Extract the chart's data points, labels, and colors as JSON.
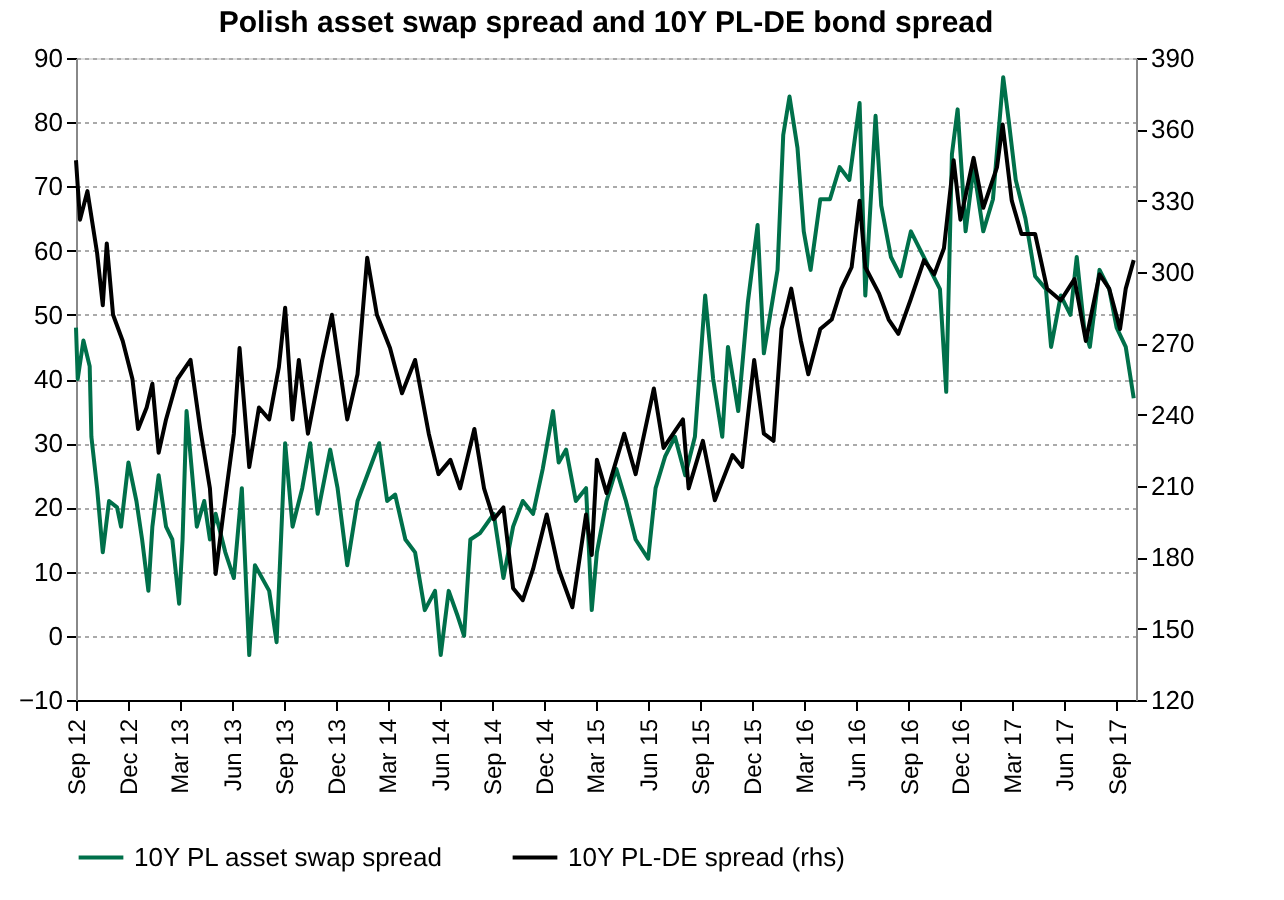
{
  "chart_data": {
    "type": "line",
    "title": "Polish asset swap spread and 10Y PL-DE bond spread",
    "xlim": [
      "2012-09-01",
      "2017-10-05"
    ],
    "xticks": [
      {
        "value": "2012-09-01",
        "label": "Sep 12"
      },
      {
        "value": "2012-12-01",
        "label": "Dec 12"
      },
      {
        "value": "2013-03-01",
        "label": "Mar 13"
      },
      {
        "value": "2013-06-01",
        "label": "Jun 13"
      },
      {
        "value": "2013-09-01",
        "label": "Sep 13"
      },
      {
        "value": "2013-12-01",
        "label": "Dec 13"
      },
      {
        "value": "2014-03-01",
        "label": "Mar 14"
      },
      {
        "value": "2014-06-01",
        "label": "Jun 14"
      },
      {
        "value": "2014-09-01",
        "label": "Sep 14"
      },
      {
        "value": "2014-12-01",
        "label": "Dec 14"
      },
      {
        "value": "2015-03-01",
        "label": "Mar 15"
      },
      {
        "value": "2015-06-01",
        "label": "Jun 15"
      },
      {
        "value": "2015-09-01",
        "label": "Sep 15"
      },
      {
        "value": "2015-12-01",
        "label": "Dec 15"
      },
      {
        "value": "2016-03-01",
        "label": "Mar 16"
      },
      {
        "value": "2016-06-01",
        "label": "Jun 16"
      },
      {
        "value": "2016-09-01",
        "label": "Sep 16"
      },
      {
        "value": "2016-12-01",
        "label": "Dec 16"
      },
      {
        "value": "2017-03-01",
        "label": "Mar 17"
      },
      {
        "value": "2017-06-01",
        "label": "Jun 17"
      },
      {
        "value": "2017-09-01",
        "label": "Sep 17"
      }
    ],
    "ylim": [
      -10,
      90
    ],
    "yticks": [
      -10,
      0,
      10,
      20,
      30,
      40,
      50,
      60,
      70,
      80,
      90
    ],
    "y2lim": [
      120,
      390
    ],
    "y2ticks": [
      120,
      150,
      180,
      210,
      240,
      270,
      300,
      330,
      360,
      390
    ],
    "grid": "y",
    "legend": "bottom",
    "line_style": "solid",
    "marker": "none",
    "series": [
      {
        "name": "10Y PL asset swap spread",
        "color": "#00704a",
        "x": [
          "2012-09-01",
          "2012-09-04",
          "2012-09-14",
          "2012-09-25",
          "2012-09-28",
          "2012-10-08",
          "2012-10-18",
          "2012-10-29",
          "2012-11-12",
          "2012-11-19",
          "2012-12-02",
          "2012-12-16",
          "2012-12-26",
          "2013-01-06",
          "2013-01-13",
          "2013-01-24",
          "2013-02-06",
          "2013-02-17",
          "2013-03-01",
          "2013-03-07",
          "2013-03-14",
          "2013-04-01",
          "2013-04-14",
          "2013-04-24",
          "2013-05-04",
          "2013-05-21",
          "2013-06-05",
          "2013-06-19",
          "2013-07-02",
          "2013-07-12",
          "2013-08-06",
          "2013-08-19",
          "2013-09-03",
          "2013-09-16",
          "2013-10-03",
          "2013-10-17",
          "2013-10-30",
          "2013-11-21",
          "2013-12-04",
          "2013-12-21",
          "2014-01-08",
          "2014-01-25",
          "2014-02-15",
          "2014-03-01",
          "2014-03-15",
          "2014-04-02",
          "2014-04-19",
          "2014-05-06",
          "2014-05-24",
          "2014-06-03",
          "2014-06-17",
          "2014-07-03",
          "2014-07-14",
          "2014-07-25",
          "2014-08-11",
          "2014-09-04",
          "2014-09-21",
          "2014-10-08",
          "2014-10-25",
          "2014-11-12",
          "2014-11-29",
          "2014-12-17",
          "2014-12-27",
          "2015-01-09",
          "2015-01-26",
          "2015-02-13",
          "2015-02-23",
          "2015-03-04",
          "2015-03-21",
          "2015-04-07",
          "2015-04-24",
          "2015-05-11",
          "2015-06-02",
          "2015-06-15",
          "2015-07-02",
          "2015-07-19",
          "2015-08-06",
          "2015-08-23",
          "2015-09-10",
          "2015-09-24",
          "2015-10-10",
          "2015-10-20",
          "2015-11-07",
          "2015-11-24",
          "2015-12-11",
          "2015-12-22",
          "2016-01-15",
          "2016-01-25",
          "2016-02-05",
          "2016-02-19",
          "2016-03-01",
          "2016-03-13",
          "2016-03-30",
          "2016-04-16",
          "2016-05-03",
          "2016-05-20",
          "2016-06-07",
          "2016-06-17",
          "2016-07-05",
          "2016-07-15",
          "2016-08-01",
          "2016-08-18",
          "2016-09-05",
          "2016-09-22",
          "2016-10-09",
          "2016-10-26",
          "2016-11-06",
          "2016-11-16",
          "2016-11-26",
          "2016-12-10",
          "2016-12-24",
          "2017-01-10",
          "2017-01-27",
          "2017-02-14",
          "2017-02-24",
          "2017-03-08",
          "2017-03-25",
          "2017-04-11",
          "2017-04-30",
          "2017-05-09",
          "2017-05-26",
          "2017-06-12",
          "2017-06-23",
          "2017-07-06",
          "2017-07-16",
          "2017-08-02",
          "2017-08-19",
          "2017-09-01",
          "2017-09-17",
          "2017-10-01"
        ],
        "values": [
          48,
          40,
          46,
          42,
          31,
          23,
          13,
          21,
          20,
          17,
          27,
          21,
          15,
          7,
          17,
          25,
          17,
          15,
          5,
          15,
          35,
          17,
          21,
          15,
          19,
          13,
          9,
          23,
          -3,
          11,
          7,
          -1,
          30,
          17,
          23,
          30,
          19,
          29,
          23,
          11,
          21,
          25,
          30,
          21,
          22,
          15,
          13,
          4,
          7,
          -3,
          7,
          3,
          0,
          15,
          16,
          19,
          9,
          17,
          21,
          19,
          26,
          35,
          27,
          29,
          21,
          23,
          4,
          13,
          21,
          26,
          21,
          15,
          12,
          23,
          28,
          31,
          25,
          31,
          53,
          40,
          31,
          45,
          35,
          52,
          64,
          44,
          57,
          78,
          84,
          76,
          63,
          57,
          68,
          68,
          73,
          71,
          83,
          53,
          81,
          67,
          59,
          56,
          63,
          60,
          57,
          54,
          38,
          75,
          82,
          63,
          73,
          63,
          68,
          87,
          80,
          71,
          65,
          56,
          54,
          45,
          53,
          50,
          59,
          48,
          45,
          57,
          54,
          48,
          45,
          37
        ]
      },
      {
        "name": "10Y PL-DE spread (rhs)",
        "color": "#000000",
        "axis": "y2",
        "x": [
          "2012-09-01",
          "2012-09-08",
          "2012-09-21",
          "2012-10-08",
          "2012-10-18",
          "2012-10-25",
          "2012-11-05",
          "2012-11-22",
          "2012-12-09",
          "2012-12-19",
          "2013-01-03",
          "2013-01-13",
          "2013-01-24",
          "2013-02-06",
          "2013-02-26",
          "2013-03-21",
          "2013-04-07",
          "2013-04-24",
          "2013-05-04",
          "2013-05-21",
          "2013-06-05",
          "2013-06-15",
          "2013-07-02",
          "2013-07-19",
          "2013-08-06",
          "2013-08-23",
          "2013-09-03",
          "2013-09-16",
          "2013-09-27",
          "2013-10-13",
          "2013-11-07",
          "2013-11-24",
          "2013-12-21",
          "2014-01-08",
          "2014-01-25",
          "2014-02-11",
          "2014-03-06",
          "2014-03-27",
          "2014-04-19",
          "2014-05-13",
          "2014-05-30",
          "2014-06-20",
          "2014-07-07",
          "2014-08-01",
          "2014-08-18",
          "2014-09-04",
          "2014-09-21",
          "2014-10-08",
          "2014-10-25",
          "2014-11-12",
          "2014-12-06",
          "2014-12-27",
          "2015-01-20",
          "2015-02-13",
          "2015-02-23",
          "2015-03-04",
          "2015-03-21",
          "2015-04-21",
          "2015-05-11",
          "2015-06-12",
          "2015-06-29",
          "2015-08-02",
          "2015-08-12",
          "2015-09-06",
          "2015-09-27",
          "2015-10-28",
          "2015-11-14",
          "2015-12-05",
          "2015-12-22",
          "2016-01-08",
          "2016-01-22",
          "2016-02-08",
          "2016-02-25",
          "2016-03-09",
          "2016-03-30",
          "2016-04-19",
          "2016-05-06",
          "2016-05-24",
          "2016-06-07",
          "2016-06-17",
          "2016-07-11",
          "2016-07-28",
          "2016-08-14",
          "2016-09-04",
          "2016-09-28",
          "2016-10-16",
          "2016-11-02",
          "2016-11-19",
          "2016-12-01",
          "2016-12-24",
          "2017-01-10",
          "2017-02-03",
          "2017-02-13",
          "2017-03-01",
          "2017-03-18",
          "2017-04-11",
          "2017-05-02",
          "2017-05-26",
          "2017-06-19",
          "2017-07-09",
          "2017-08-02",
          "2017-08-19",
          "2017-09-07",
          "2017-09-17",
          "2017-10-01"
        ],
        "values": [
          347,
          322,
          334,
          308,
          286,
          312,
          282,
          271,
          255,
          234,
          243,
          253,
          224,
          238,
          255,
          263,
          234,
          209,
          173,
          205,
          232,
          268,
          218,
          243,
          238,
          260,
          285,
          238,
          263,
          232,
          263,
          282,
          238,
          257,
          306,
          282,
          268,
          249,
          263,
          232,
          215,
          221,
          209,
          234,
          209,
          196,
          201,
          167,
          162,
          175,
          198,
          175,
          159,
          198,
          181,
          221,
          207,
          232,
          215,
          251,
          226,
          238,
          209,
          229,
          204,
          223,
          218,
          263,
          232,
          229,
          276,
          293,
          271,
          257,
          276,
          280,
          293,
          302,
          330,
          302,
          291,
          280,
          274,
          288,
          305,
          299,
          310,
          347,
          322,
          348,
          327,
          344,
          362,
          330,
          316,
          316,
          293,
          288,
          297,
          271,
          299,
          293,
          276,
          293,
          305
        ]
      }
    ]
  }
}
